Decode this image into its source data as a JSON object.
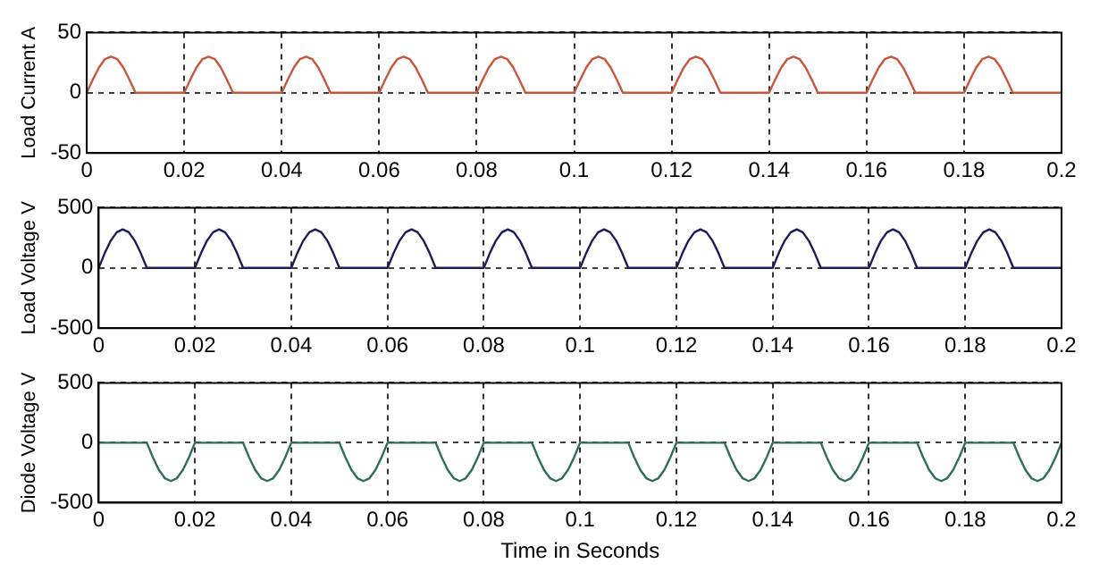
{
  "chart_data": [
    {
      "type": "line",
      "ylabel": "Load Current A",
      "xlim": [
        0,
        0.2
      ],
      "xticks": [
        0,
        0.02,
        0.04,
        0.06,
        0.08,
        0.1,
        0.12,
        0.14,
        0.16,
        0.18,
        0.2
      ],
      "ylim": [
        -50,
        50
      ],
      "yticks": [
        -50,
        0,
        50
      ],
      "grid": true,
      "line_style": "solid",
      "marker": "none",
      "series": [
        {
          "color": "#c8563a",
          "x": [
            0,
            0.00125,
            0.0025,
            0.00375,
            0.005,
            0.00625,
            0.0075,
            0.00875,
            0.01,
            0.02,
            0.02125,
            0.0225,
            0.02375,
            0.025,
            0.02625,
            0.0275,
            0.02875,
            0.03,
            0.04,
            0.04125,
            0.0425,
            0.04375,
            0.045,
            0.04625,
            0.0475,
            0.04875,
            0.05,
            0.06,
            0.06125,
            0.0625,
            0.06375,
            0.065,
            0.06625,
            0.0675,
            0.06875,
            0.07,
            0.08,
            0.08125,
            0.0825,
            0.08375,
            0.085,
            0.08625,
            0.0875,
            0.08875,
            0.09,
            0.1,
            0.10125,
            0.1025,
            0.10375,
            0.105,
            0.10625,
            0.1075,
            0.10875,
            0.11,
            0.12,
            0.12125,
            0.1225,
            0.12375,
            0.125,
            0.12625,
            0.1275,
            0.12875,
            0.13,
            0.14,
            0.14125,
            0.1425,
            0.14375,
            0.145,
            0.14625,
            0.1475,
            0.14875,
            0.15,
            0.16,
            0.16125,
            0.1625,
            0.16375,
            0.165,
            0.16625,
            0.1675,
            0.16875,
            0.17,
            0.18,
            0.18125,
            0.1825,
            0.18375,
            0.185,
            0.18625,
            0.1875,
            0.18875,
            0.19,
            0.2
          ],
          "values": [
            0,
            11,
            21,
            28,
            30,
            28,
            21,
            11,
            0,
            0,
            11,
            21,
            28,
            30,
            28,
            21,
            11,
            0,
            0,
            11,
            21,
            28,
            30,
            28,
            21,
            11,
            0,
            0,
            11,
            21,
            28,
            30,
            28,
            21,
            11,
            0,
            0,
            11,
            21,
            28,
            30,
            28,
            21,
            11,
            0,
            0,
            11,
            21,
            28,
            30,
            28,
            21,
            11,
            0,
            0,
            11,
            21,
            28,
            30,
            28,
            21,
            11,
            0,
            0,
            11,
            21,
            28,
            30,
            28,
            21,
            11,
            0,
            0,
            11,
            21,
            28,
            30,
            28,
            21,
            11,
            0,
            0,
            11,
            21,
            28,
            30,
            28,
            21,
            11,
            0,
            0
          ]
        }
      ]
    },
    {
      "type": "line",
      "ylabel": "Load Voltage V",
      "xlim": [
        0,
        0.2
      ],
      "xticks": [
        0,
        0.02,
        0.04,
        0.06,
        0.08,
        0.1,
        0.12,
        0.14,
        0.16,
        0.18,
        0.2
      ],
      "ylim": [
        -500,
        500
      ],
      "yticks": [
        -500,
        0,
        500
      ],
      "grid": true,
      "line_style": "solid",
      "marker": "none",
      "series": [
        {
          "color": "#1c1c5a",
          "x": [
            0,
            0.00125,
            0.0025,
            0.00375,
            0.005,
            0.00625,
            0.0075,
            0.00875,
            0.01,
            0.02,
            0.02125,
            0.0225,
            0.02375,
            0.025,
            0.02625,
            0.0275,
            0.02875,
            0.03,
            0.04,
            0.04125,
            0.0425,
            0.04375,
            0.045,
            0.04625,
            0.0475,
            0.04875,
            0.05,
            0.06,
            0.06125,
            0.0625,
            0.06375,
            0.065,
            0.06625,
            0.0675,
            0.06875,
            0.07,
            0.08,
            0.08125,
            0.0825,
            0.08375,
            0.085,
            0.08625,
            0.0875,
            0.08875,
            0.09,
            0.1,
            0.10125,
            0.1025,
            0.10375,
            0.105,
            0.10625,
            0.1075,
            0.10875,
            0.11,
            0.12,
            0.12125,
            0.1225,
            0.12375,
            0.125,
            0.12625,
            0.1275,
            0.12875,
            0.13,
            0.14,
            0.14125,
            0.1425,
            0.14375,
            0.145,
            0.14625,
            0.1475,
            0.14875,
            0.15,
            0.16,
            0.16125,
            0.1625,
            0.16375,
            0.165,
            0.16625,
            0.1675,
            0.16875,
            0.17,
            0.18,
            0.18125,
            0.1825,
            0.18375,
            0.185,
            0.18625,
            0.1875,
            0.18875,
            0.19,
            0.2
          ],
          "values": [
            0,
            122,
            226,
            296,
            320,
            296,
            226,
            122,
            0,
            0,
            122,
            226,
            296,
            320,
            296,
            226,
            122,
            0,
            0,
            122,
            226,
            296,
            320,
            296,
            226,
            122,
            0,
            0,
            122,
            226,
            296,
            320,
            296,
            226,
            122,
            0,
            0,
            122,
            226,
            296,
            320,
            296,
            226,
            122,
            0,
            0,
            122,
            226,
            296,
            320,
            296,
            226,
            122,
            0,
            0,
            122,
            226,
            296,
            320,
            296,
            226,
            122,
            0,
            0,
            122,
            226,
            296,
            320,
            296,
            226,
            122,
            0,
            0,
            122,
            226,
            296,
            320,
            296,
            226,
            122,
            0,
            0,
            122,
            226,
            296,
            320,
            296,
            226,
            122,
            0,
            0
          ]
        }
      ]
    },
    {
      "type": "line",
      "ylabel": "Diode Voltage V",
      "xlabel": "Time in Seconds",
      "xlim": [
        0,
        0.2
      ],
      "xticks": [
        0,
        0.02,
        0.04,
        0.06,
        0.08,
        0.1,
        0.12,
        0.14,
        0.16,
        0.18,
        0.2
      ],
      "ylim": [
        -500,
        500
      ],
      "yticks": [
        -500,
        0,
        500
      ],
      "grid": true,
      "line_style": "solid",
      "marker": "none",
      "series": [
        {
          "color": "#2e6e5a",
          "x": [
            0,
            0.01,
            0.01125,
            0.0125,
            0.01375,
            0.015,
            0.01625,
            0.0175,
            0.01875,
            0.02,
            0.03,
            0.03125,
            0.0325,
            0.03375,
            0.035,
            0.03625,
            0.0375,
            0.03875,
            0.04,
            0.05,
            0.05125,
            0.0525,
            0.05375,
            0.055,
            0.05625,
            0.0575,
            0.05875,
            0.06,
            0.07,
            0.07125,
            0.0725,
            0.07375,
            0.075,
            0.07625,
            0.0775,
            0.07875,
            0.08,
            0.09,
            0.09125,
            0.0925,
            0.09375,
            0.095,
            0.09625,
            0.0975,
            0.09875,
            0.1,
            0.11,
            0.11125,
            0.1125,
            0.11375,
            0.115,
            0.11625,
            0.1175,
            0.11875,
            0.12,
            0.13,
            0.13125,
            0.1325,
            0.13375,
            0.135,
            0.13625,
            0.1375,
            0.13875,
            0.14,
            0.15,
            0.15125,
            0.1525,
            0.15375,
            0.155,
            0.15625,
            0.1575,
            0.15875,
            0.16,
            0.17,
            0.17125,
            0.1725,
            0.17375,
            0.175,
            0.17625,
            0.1775,
            0.17875,
            0.18,
            0.19,
            0.19125,
            0.1925,
            0.19375,
            0.195,
            0.19625,
            0.1975,
            0.19875,
            0.2
          ],
          "values": [
            0,
            0,
            -122,
            -226,
            -296,
            -320,
            -296,
            -226,
            -122,
            0,
            0,
            -122,
            -226,
            -296,
            -320,
            -296,
            -226,
            -122,
            0,
            0,
            -122,
            -226,
            -296,
            -320,
            -296,
            -226,
            -122,
            0,
            0,
            -122,
            -226,
            -296,
            -320,
            -296,
            -226,
            -122,
            0,
            0,
            -122,
            -226,
            -296,
            -320,
            -296,
            -226,
            -122,
            0,
            0,
            -122,
            -226,
            -296,
            -320,
            -296,
            -226,
            -122,
            0,
            0,
            -122,
            -226,
            -296,
            -320,
            -296,
            -226,
            -122,
            0,
            0,
            -122,
            -226,
            -296,
            -320,
            -296,
            -226,
            -122,
            0,
            0,
            -122,
            -226,
            -296,
            -320,
            -296,
            -226,
            -122,
            0,
            0,
            -122,
            -226,
            -296,
            -320,
            -296,
            -226,
            -122,
            0
          ]
        }
      ]
    }
  ]
}
